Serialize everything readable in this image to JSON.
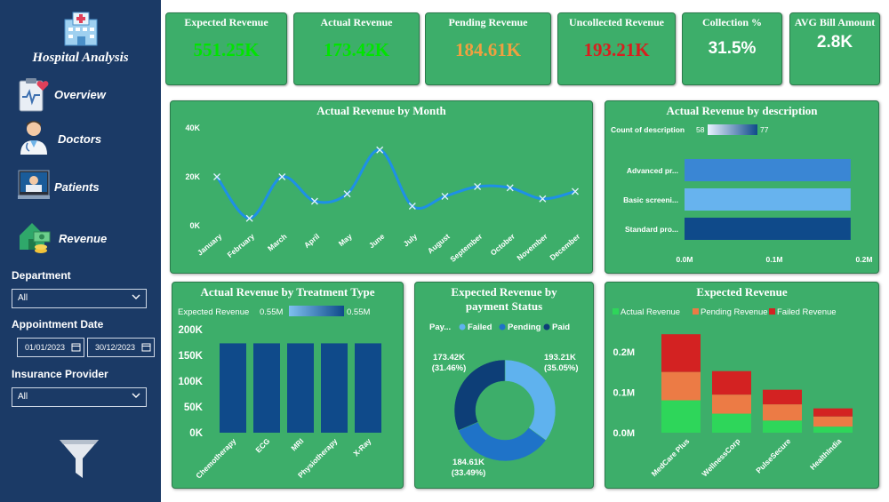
{
  "sidebar": {
    "title": "Hospital Analysis",
    "nav": [
      {
        "label": "Overview",
        "icon": "clipboard-heart-icon"
      },
      {
        "label": "Doctors",
        "icon": "doctor-icon"
      },
      {
        "label": "Patients",
        "icon": "patient-bed-icon"
      },
      {
        "label": "Revenue",
        "icon": "money-house-icon"
      }
    ],
    "filters": {
      "department_label": "Department",
      "department_value": "All",
      "appointment_label": "Appointment Date",
      "date_from": "01/01/2023",
      "date_to": "30/12/2023",
      "insurance_label": "Insurance Provider",
      "insurance_value": "All"
    }
  },
  "kpis": [
    {
      "title": "Expected Revenue",
      "value": "551.25K",
      "color": "#00e400"
    },
    {
      "title": "Actual Revenue",
      "value": "173.42K",
      "color": "#00e400"
    },
    {
      "title": "Pending Revenue",
      "value": "184.61K",
      "color": "#f0a040"
    },
    {
      "title": "Uncollected Revenue",
      "value": "193.21K",
      "color": "#d81e1e"
    },
    {
      "title": "Collection %",
      "value": "31.5%",
      "color": "#ffffff"
    },
    {
      "title": "AVG Bill Amount",
      "value": "2.8K",
      "color": "#ffffff"
    }
  ],
  "charts": {
    "month": {
      "title": "Actual Revenue by Month",
      "chart_data": {
        "type": "line",
        "categories": [
          "January",
          "February",
          "March",
          "April",
          "May",
          "June",
          "July",
          "August",
          "September",
          "October",
          "November",
          "December"
        ],
        "values": [
          20000,
          3000,
          20000,
          10000,
          13000,
          31000,
          8000,
          12000,
          16000,
          15500,
          11000,
          14000
        ],
        "ylim": [
          0,
          40000
        ],
        "y_ticks": [
          "0K",
          "20K",
          "40K"
        ]
      }
    },
    "description": {
      "title": "Actual Revenue by description",
      "legend_label": "Count of description",
      "legend_min": "58",
      "legend_max": "77",
      "chart_data": {
        "type": "bar",
        "orientation": "horizontal",
        "categories": [
          "Advanced pr...",
          "Basic screeni...",
          "Standard pro..."
        ],
        "values": [
          0.185,
          0.185,
          0.185
        ],
        "colors": [
          "#3a86d4",
          "#67b3ee",
          "#0f4a8a"
        ],
        "xlim": [
          0,
          0.2
        ],
        "x_ticks": [
          "0.0M",
          "0.1M",
          "0.2M"
        ]
      }
    },
    "treatment": {
      "title": "Actual Revenue by Treatment Type",
      "legend_label": "Expected Revenue",
      "legend_min": "0.55M",
      "legend_max": "0.55M",
      "chart_data": {
        "type": "bar",
        "categories": [
          "Chemotherapy",
          "ECG",
          "MRI",
          "Physiotherapy",
          "X-Ray"
        ],
        "values": [
          173420,
          173420,
          173420,
          173420,
          173420
        ],
        "ylim": [
          0,
          200000
        ],
        "y_ticks": [
          "0K",
          "50K",
          "100K",
          "150K",
          "200K"
        ]
      }
    },
    "payment": {
      "title": "Expected Revenue by payment Status",
      "legend_title": "Pay...",
      "chart_data": {
        "type": "pie",
        "labels": [
          "Failed",
          "Pending",
          "Paid"
        ],
        "values": [
          193.21,
          184.61,
          173.42
        ],
        "colors": [
          "#5fb2ee",
          "#1f73c8",
          "#0d3e77"
        ],
        "data_labels": [
          {
            "value": "193.21K",
            "pct": "(35.05%)"
          },
          {
            "value": "184.61K",
            "pct": "(33.49%)"
          },
          {
            "value": "173.42K",
            "pct": "(31.46%)"
          }
        ]
      }
    },
    "expected": {
      "title": "Expected Revenue",
      "chart_data": {
        "type": "bar",
        "stacked": true,
        "categories": [
          "MedCare Plus",
          "WellnessCorp",
          "PulseSecure",
          "HealthIndia"
        ],
        "series": [
          {
            "name": "Actual Revenue",
            "color": "#2ed65a",
            "values": [
              0.08,
              0.047,
              0.03,
              0.015
            ]
          },
          {
            "name": "Pending Revenue",
            "color": "#ec7b45",
            "values": [
              0.07,
              0.047,
              0.04,
              0.025
            ]
          },
          {
            "name": "Failed Revenue",
            "color": "#d32222",
            "values": [
              0.093,
              0.058,
              0.036,
              0.02
            ]
          }
        ],
        "ylim": [
          0,
          0.25
        ],
        "y_ticks": [
          "0.0M",
          "0.1M",
          "0.2M"
        ]
      }
    }
  }
}
